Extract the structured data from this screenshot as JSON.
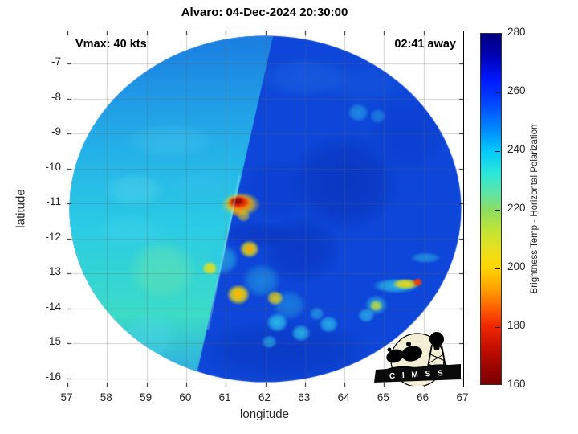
{
  "figure": {
    "title": "Alvaro: 04-Dec-2024 20:30:00",
    "vmax_annotation": "Vmax: 40 kts",
    "eta_annotation": "02:41 away",
    "logo_text": "C I M S S"
  },
  "chart_data": {
    "type": "heatmap",
    "title": "Alvaro: 04-Dec-2024 20:30:00",
    "xlabel": "longitude",
    "ylabel": "latitude",
    "xlim": [
      57,
      67
    ],
    "ylim": [
      -16.23,
      -6.08
    ],
    "xticks": [
      57,
      58,
      59,
      60,
      61,
      62,
      63,
      64,
      65,
      66,
      67
    ],
    "yticks": [
      -7,
      -8,
      -9,
      -10,
      -11,
      -12,
      -13,
      -14,
      -15,
      -16
    ],
    "grid": true,
    "grid_color": "rgba(100,100,100,0.30)",
    "colorbar": {
      "label": "Brightness Temp - Horizontal Polarization",
      "min": 160,
      "max": 280,
      "ticks": [
        280,
        260,
        240,
        220,
        200,
        180,
        160
      ],
      "stops_top_to_bottom": [
        [
          0.0,
          "#00007f"
        ],
        [
          0.06,
          "#0000b0"
        ],
        [
          0.13,
          "#0018ff"
        ],
        [
          0.2,
          "#0048ff"
        ],
        [
          0.28,
          "#0090ff"
        ],
        [
          0.333,
          "#00c8ff"
        ],
        [
          0.4,
          "#2ce8d8"
        ],
        [
          0.46,
          "#62e4a0"
        ],
        [
          0.5,
          "#8ade62"
        ],
        [
          0.56,
          "#c0e438"
        ],
        [
          0.62,
          "#ecdf1c"
        ],
        [
          0.667,
          "#ffd600"
        ],
        [
          0.73,
          "#ff9e00"
        ],
        [
          0.78,
          "#ff6400"
        ],
        [
          0.833,
          "#f02800"
        ],
        [
          0.9,
          "#c00e00"
        ],
        [
          0.96,
          "#950400"
        ],
        [
          1.0,
          "#7a0000"
        ]
      ]
    },
    "swath": {
      "center_lon": 62.0,
      "center_lat": -11.155,
      "radius_deg": 4.95,
      "base_color": "#0d46d8",
      "left_edge": {
        "from": [
          62.2,
          -6.2
        ],
        "to": [
          60.2,
          -16.2
        ]
      },
      "edge_glint": {
        "from": [
          61.35,
          -10.2
        ],
        "to": [
          60.55,
          -14.6
        ],
        "color": "rgba(160,240,248,0.35)"
      },
      "left_gradient": [
        [
          0.0,
          "#1b7ee2"
        ],
        [
          0.3,
          "#24aee8"
        ],
        [
          0.55,
          "#2bcce4"
        ],
        [
          0.8,
          "#3cdcc8"
        ],
        [
          0.92,
          "#32bada"
        ],
        [
          1.0,
          "#2fa8e0"
        ]
      ]
    },
    "features": [
      {
        "lon": 59.4,
        "lat": -12.9,
        "rx": 0.9,
        "color": "#6fe6a8",
        "alpha": 0.5
      },
      {
        "lon": 58.7,
        "lat": -10.6,
        "rx": 0.8,
        "ry": 0.5,
        "color": "#5fd8f0",
        "alpha": 0.4
      },
      {
        "lon": 59.1,
        "lat": -14.8,
        "rx": 0.7,
        "color": "#49d8e8",
        "alpha": 0.5
      },
      {
        "lon": 59.6,
        "lat": -9.2,
        "rx": 1.2,
        "ry": 0.5,
        "color": "#4cc8f0",
        "alpha": 0.35
      },
      {
        "lon": 58.6,
        "lat": -11.8,
        "rx": 0.9,
        "ry": 0.5,
        "color": "#46d4ee",
        "alpha": 0.35
      },
      {
        "lon": 60.3,
        "lat": -10.5,
        "rx": 0.8,
        "ry": 0.4,
        "color": "#3fc4ee",
        "alpha": 0.3
      },
      {
        "lon": 64.0,
        "lat": -10.4,
        "rx": 1.4,
        "color": "#082cb0",
        "alpha": 0.55
      },
      {
        "lon": 62.9,
        "lat": -12.3,
        "rx": 1.0,
        "color": "#082cb0",
        "alpha": 0.45
      },
      {
        "lon": 65.6,
        "lat": -9.0,
        "rx": 1.0,
        "color": "#0c36c8",
        "alpha": 0.4
      },
      {
        "lon": 62.3,
        "lat": -10.6,
        "rx": 0.9,
        "color": "#0c36c8",
        "alpha": 0.4
      },
      {
        "lon": 62.5,
        "lat": -15.2,
        "rx": 2.2,
        "ry": 0.9,
        "color": "#082cb0",
        "alpha": 0.4
      },
      {
        "lon": 61.8,
        "lat": -11.9,
        "rx": 0.9,
        "ry": 0.4,
        "color": "#0930b8",
        "alpha": 0.5
      },
      {
        "lon": 63.0,
        "lat": -7.4,
        "rx": 1.2,
        "ry": 0.6,
        "color": "#2a7ae8",
        "alpha": 0.35
      },
      {
        "lon": 64.5,
        "lat": -7.6,
        "rx": 1.1,
        "ry": 0.6,
        "color": "#1e64e4",
        "alpha": 0.35
      },
      {
        "lon": 64.35,
        "lat": -8.4,
        "rx": 0.28,
        "color": "#35c8ee",
        "alpha": 0.5
      },
      {
        "lon": 64.85,
        "lat": -8.5,
        "rx": 0.22,
        "color": "#35c8ee",
        "alpha": 0.4
      },
      {
        "lon": 60.9,
        "lat": -12.6,
        "rx": 0.45,
        "color": "#2ec8e8",
        "alpha": 0.6
      },
      {
        "lon": 61.9,
        "lat": -13.2,
        "rx": 0.5,
        "color": "#28b8e8",
        "alpha": 0.5
      },
      {
        "lon": 62.6,
        "lat": -13.9,
        "rx": 0.45,
        "color": "#28b8e8",
        "alpha": 0.45
      },
      {
        "lon": 61.38,
        "lat": -11.02,
        "rx": 0.5,
        "ry": 0.35,
        "color": "#ffd900",
        "alpha": 0.85
      },
      {
        "lon": 61.36,
        "lat": -10.99,
        "rx": 0.36,
        "ry": 0.26,
        "color": "#ff7a00",
        "alpha": 0.95
      },
      {
        "lon": 61.33,
        "lat": -10.96,
        "rx": 0.27,
        "ry": 0.19,
        "color": "#e31400",
        "alpha": 1
      },
      {
        "lon": 61.3,
        "lat": -10.93,
        "rx": 0.17,
        "ry": 0.12,
        "color": "#8f0700",
        "alpha": 1
      },
      {
        "lon": 61.45,
        "lat": -11.35,
        "rx": 0.18,
        "color": "#ffd900",
        "alpha": 0.6
      },
      {
        "lon": 61.3,
        "lat": -11.25,
        "rx": 0.15,
        "color": "#ff9900",
        "alpha": 0.5
      },
      {
        "lon": 61.6,
        "lat": -12.3,
        "rx": 0.26,
        "color": "#ffe400",
        "alpha": 0.9
      },
      {
        "lon": 61.6,
        "lat": -12.3,
        "rx": 0.12,
        "color": "#ff9d00",
        "alpha": 0.8
      },
      {
        "lon": 60.6,
        "lat": -12.85,
        "rx": 0.2,
        "color": "#ffe400",
        "alpha": 0.85
      },
      {
        "lon": 61.32,
        "lat": -13.6,
        "rx": 0.3,
        "color": "#ffe400",
        "alpha": 0.95
      },
      {
        "lon": 61.32,
        "lat": -13.58,
        "rx": 0.14,
        "color": "#ffb300",
        "alpha": 0.9
      },
      {
        "lon": 62.25,
        "lat": -13.7,
        "rx": 0.22,
        "color": "#ffe400",
        "alpha": 0.8
      },
      {
        "lon": 62.3,
        "lat": -14.4,
        "rx": 0.28,
        "color": "#30d0f0",
        "alpha": 0.8
      },
      {
        "lon": 62.9,
        "lat": -14.7,
        "rx": 0.25,
        "color": "#30d0f0",
        "alpha": 0.75
      },
      {
        "lon": 63.6,
        "lat": -14.45,
        "rx": 0.25,
        "color": "#30d0f0",
        "alpha": 0.7
      },
      {
        "lon": 64.55,
        "lat": -14.2,
        "rx": 0.22,
        "color": "#38d8f0",
        "alpha": 0.6
      },
      {
        "lon": 62.1,
        "lat": -14.95,
        "rx": 0.2,
        "color": "#30d0f0",
        "alpha": 0.6
      },
      {
        "lon": 63.3,
        "lat": -14.15,
        "rx": 0.2,
        "color": "#30d0f0",
        "alpha": 0.5
      },
      {
        "lon": 65.3,
        "lat": -13.35,
        "rx": 0.6,
        "ry": 0.22,
        "color": "#2ec8e8",
        "alpha": 0.8
      },
      {
        "lon": 65.55,
        "lat": -13.3,
        "rx": 0.35,
        "ry": 0.16,
        "color": "#ffe400",
        "alpha": 0.9
      },
      {
        "lon": 65.85,
        "lat": -13.25,
        "rx": 0.13,
        "color": "#ff3c00",
        "alpha": 0.95
      },
      {
        "lon": 64.8,
        "lat": -13.9,
        "rx": 0.3,
        "color": "#38d0e0",
        "alpha": 0.6
      },
      {
        "lon": 64.8,
        "lat": -13.92,
        "rx": 0.17,
        "color": "#d8e828",
        "alpha": 0.8
      },
      {
        "lon": 66.05,
        "lat": -12.55,
        "rx": 0.4,
        "ry": 0.16,
        "color": "#2fc0e8",
        "alpha": 0.55
      }
    ]
  }
}
